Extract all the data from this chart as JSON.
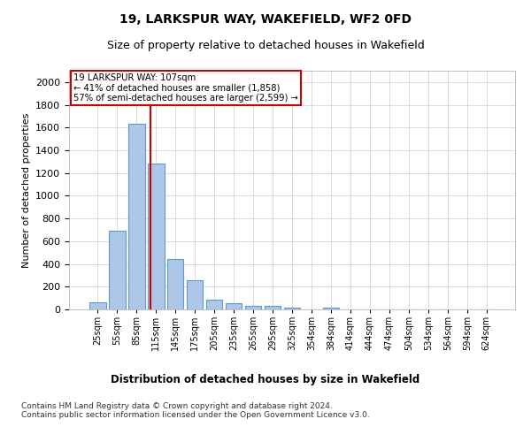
{
  "title": "19, LARKSPUR WAY, WAKEFIELD, WF2 0FD",
  "subtitle": "Size of property relative to detached houses in Wakefield",
  "xlabel": "Distribution of detached houses by size in Wakefield",
  "ylabel": "Number of detached properties",
  "bar_categories": [
    "25sqm",
    "55sqm",
    "85sqm",
    "115sqm",
    "145sqm",
    "175sqm",
    "205sqm",
    "235sqm",
    "265sqm",
    "295sqm",
    "325sqm",
    "354sqm",
    "384sqm",
    "414sqm",
    "444sqm",
    "474sqm",
    "504sqm",
    "534sqm",
    "564sqm",
    "594sqm",
    "624sqm"
  ],
  "bar_values": [
    65,
    695,
    1630,
    1285,
    445,
    255,
    88,
    55,
    35,
    28,
    15,
    0,
    15,
    0,
    0,
    0,
    0,
    0,
    0,
    0,
    0
  ],
  "bar_color": "#aec6e8",
  "bar_edge_color": "#5b9bd5",
  "vline_color": "#cc0000",
  "annotation_text": "19 LARKSPUR WAY: 107sqm\n← 41% of detached houses are smaller (1,858)\n57% of semi-detached houses are larger (2,599) →",
  "annotation_box_color": "#ffffff",
  "annotation_box_edge_color": "#cc0000",
  "ylim": [
    0,
    2100
  ],
  "yticks": [
    0,
    200,
    400,
    600,
    800,
    1000,
    1200,
    1400,
    1600,
    1800,
    2000
  ],
  "title_fontsize": 10,
  "subtitle_fontsize": 9,
  "footer_text": "Contains HM Land Registry data © Crown copyright and database right 2024.\nContains public sector information licensed under the Open Government Licence v3.0.",
  "background_color": "#ffffff",
  "grid_color": "#cccccc"
}
